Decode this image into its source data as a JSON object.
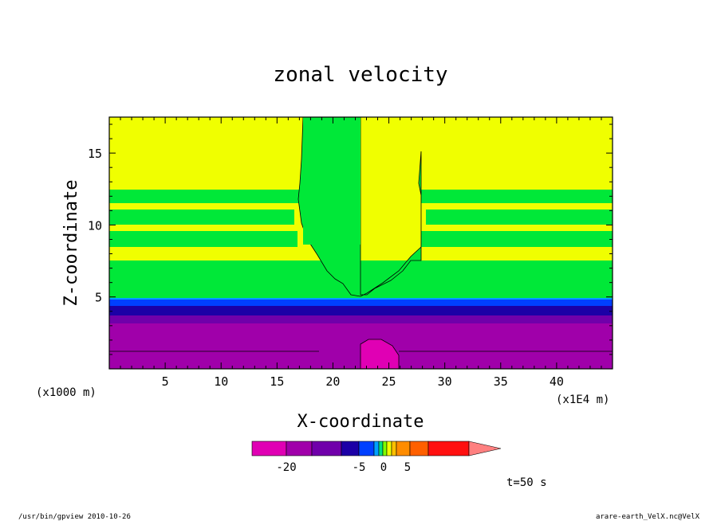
{
  "chart_data": {
    "type": "heatmap",
    "title": "zonal velocity",
    "xlabel": "X-coordinate",
    "ylabel": "Z-coordinate",
    "x_unit_label": "(x1000 m)",
    "x_scale_label": "(x1E4 m)",
    "xlim": [
      0,
      45
    ],
    "ylim": [
      0,
      17.5
    ],
    "x_ticks": [
      "5",
      "10",
      "15",
      "20",
      "25",
      "30",
      "35",
      "40"
    ],
    "y_ticks": [
      "5",
      "10",
      "15"
    ],
    "colorbar": {
      "colors": [
        "#e000b4",
        "#a000aa",
        "#7000aa",
        "#1c00a6",
        "#0040ff",
        "#00a0ff",
        "#00e080",
        "#80ff00",
        "#f0ff00",
        "#ffc000",
        "#ff8c00",
        "#ff6000",
        "#ff1010",
        "#ff8080"
      ],
      "tick_labels": [
        "-20",
        "-5",
        "0",
        "5"
      ]
    },
    "regions": [
      {
        "name": "upper-layer",
        "color": "#f0ff00"
      },
      {
        "name": "central-plume",
        "color": "#00e838"
      },
      {
        "name": "jet-band",
        "color": "#1c00a6"
      },
      {
        "name": "lower-layer",
        "color": "#a000aa"
      },
      {
        "name": "surface-maximum",
        "color": "#e000b4"
      }
    ]
  },
  "annotations": {
    "time_label": "t=50 s",
    "footer_left": "/usr/bin/gpview   2010-10-26",
    "footer_right": "arare-earth_VelX.nc@VelX"
  }
}
